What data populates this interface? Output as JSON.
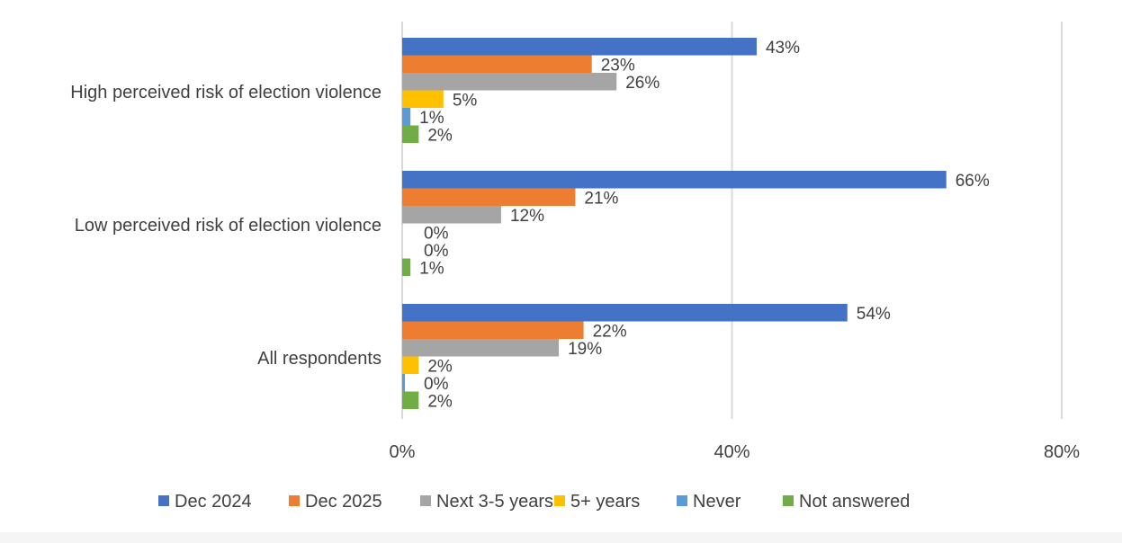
{
  "chart_data": {
    "type": "bar",
    "orientation": "horizontal",
    "categories": [
      "High perceived risk of election violence",
      "Low perceived risk of election violence",
      "All respondents"
    ],
    "series": [
      {
        "name": "Dec 2024",
        "color": "#4472C4",
        "values": [
          43,
          66,
          54
        ],
        "labels": [
          "43%",
          "66%",
          "54%"
        ]
      },
      {
        "name": "Dec 2025",
        "color": "#ED7D31",
        "values": [
          23,
          21,
          22
        ],
        "labels": [
          "23%",
          "21%",
          "22%"
        ]
      },
      {
        "name": "Next 3-5 years",
        "color": "#A5A5A5",
        "values": [
          26,
          12,
          19
        ],
        "labels": [
          "26%",
          "12%",
          "19%"
        ]
      },
      {
        "name": "5+ years",
        "color": "#FFC000",
        "values": [
          5,
          0,
          2
        ],
        "labels": [
          "5%",
          "0%",
          "2%"
        ]
      },
      {
        "name": "Never",
        "color": "#5B9BD5",
        "values": [
          1,
          0,
          0
        ],
        "labels": [
          "1%",
          "0%",
          "0%"
        ]
      },
      {
        "name": "Not answered",
        "color": "#70AD47",
        "values": [
          2,
          1,
          2
        ],
        "labels": [
          "2%",
          "1%",
          "2%"
        ]
      }
    ],
    "xlim": [
      0,
      80
    ],
    "xticks": [
      "0%",
      "40%",
      "80%"
    ],
    "xtick_values": [
      0,
      40,
      80
    ],
    "grid": true,
    "legend_position": "bottom"
  }
}
